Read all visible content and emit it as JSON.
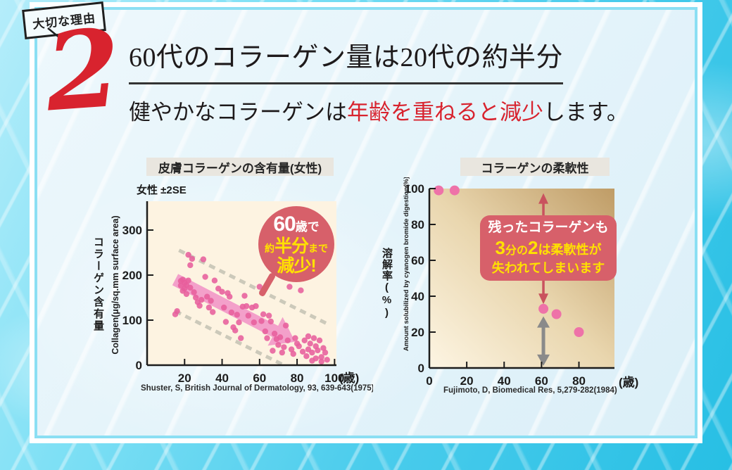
{
  "colors": {
    "accent_red": "#d8232e",
    "callout_bg": "#d7606a",
    "highlight_yellow": "#ffe100",
    "dot_pink": "#e75f9c",
    "arrow_pink": "#f29bc8",
    "plot_cream": "#fdf3e1",
    "plot_tan": "#bf9c66",
    "band_gray": "#e9e6df",
    "dash_gray": "#ccc9ba",
    "frame_cyan": "#8bdff3"
  },
  "badge": {
    "label": "大切な理由"
  },
  "reason_number": "2",
  "headline": "60代のコラーゲン量は20代の約半分",
  "subheadline": {
    "pre": "健やかなコラーゲンは",
    "em": "年齢を重ねると減少",
    "post": "します。"
  },
  "chart_data": [
    {
      "type": "scatter",
      "title": "皮膚コラーゲンの含有量(女性)",
      "legend": "女性 ±2SE",
      "ylabel_jp": "コラーゲン含有量",
      "ylabel_en": "Collagen(μg/sq.mm surface area)",
      "x_unit": "(歳)",
      "citation": "Shuster, S, British Journal of Dermatology, 93, 639-643(1975)",
      "xlim": [
        0,
        101
      ],
      "ylim": [
        0,
        364
      ],
      "xticks": [
        20,
        40,
        60,
        80,
        100
      ],
      "yticks": [
        0,
        100,
        200,
        300
      ],
      "points": [
        [
          15,
          113
        ],
        [
          16,
          120
        ],
        [
          18,
          187
        ],
        [
          18,
          177
        ],
        [
          19,
          165
        ],
        [
          19,
          190
        ],
        [
          20,
          183
        ],
        [
          20,
          170
        ],
        [
          21,
          158
        ],
        [
          21,
          178
        ],
        [
          22,
          245
        ],
        [
          22,
          188
        ],
        [
          23,
          222
        ],
        [
          23,
          172
        ],
        [
          24,
          236
        ],
        [
          25,
          162
        ],
        [
          26,
          150
        ],
        [
          27,
          140
        ],
        [
          28,
          132
        ],
        [
          29,
          145
        ],
        [
          30,
          235
        ],
        [
          31,
          196
        ],
        [
          32,
          152
        ],
        [
          33,
          128
        ],
        [
          34,
          143
        ],
        [
          35,
          118
        ],
        [
          36,
          188
        ],
        [
          38,
          170
        ],
        [
          40,
          163
        ],
        [
          41,
          128
        ],
        [
          42,
          96
        ],
        [
          43,
          160
        ],
        [
          44,
          152
        ],
        [
          45,
          117
        ],
        [
          46,
          84
        ],
        [
          47,
          77
        ],
        [
          48,
          112
        ],
        [
          49,
          95
        ],
        [
          50,
          60
        ],
        [
          51,
          130
        ],
        [
          52,
          154
        ],
        [
          53,
          131
        ],
        [
          54,
          110
        ],
        [
          56,
          128
        ],
        [
          57,
          95
        ],
        [
          58,
          131
        ],
        [
          60,
          174
        ],
        [
          61,
          98
        ],
        [
          62,
          113
        ],
        [
          63,
          75
        ],
        [
          64,
          60
        ],
        [
          65,
          110
        ],
        [
          66,
          97
        ],
        [
          67,
          32
        ],
        [
          68,
          70
        ],
        [
          69,
          58
        ],
        [
          70,
          45
        ],
        [
          71,
          62
        ],
        [
          72,
          28
        ],
        [
          73,
          40
        ],
        [
          74,
          88
        ],
        [
          75,
          55
        ],
        [
          76,
          174
        ],
        [
          77,
          35
        ],
        [
          78,
          25
        ],
        [
          79,
          60
        ],
        [
          80,
          48
        ],
        [
          81,
          42
        ],
        [
          82,
          166
        ],
        [
          83,
          30
        ],
        [
          84,
          55
        ],
        [
          85,
          20
        ],
        [
          86,
          64
        ],
        [
          86,
          35
        ],
        [
          87,
          48
        ],
        [
          88,
          28
        ],
        [
          89,
          60
        ],
        [
          90,
          15
        ],
        [
          90,
          42
        ],
        [
          91,
          33
        ],
        [
          92,
          55
        ],
        [
          93,
          18
        ],
        [
          94,
          38
        ],
        [
          95,
          28
        ],
        [
          96,
          12
        ],
        [
          93,
          8
        ],
        [
          88,
          10
        ]
      ],
      "upper_band": [
        [
          17,
          255
        ],
        [
          97,
          90
        ]
      ],
      "lower_band": [
        [
          15,
          120
        ],
        [
          72,
          2
        ]
      ],
      "trend_arrow": {
        "from": [
          15,
          190
        ],
        "to": [
          79,
          52
        ]
      },
      "callout": {
        "num": "60",
        "num_suffix": "歳で",
        "approx": "約",
        "big": "半分",
        "to": "まで",
        "line3": "減少!"
      }
    },
    {
      "type": "scatter",
      "title": "コラーゲンの柔軟性",
      "ylabel_jp": "溶解率(%)",
      "ylabel_en": "Amount solubilized by cyanogen bromide digestion(%)",
      "x_unit": "(歳)",
      "citation": "Fujimoto, D, Biomedical Res, 5,279-282(1984)",
      "xlim": [
        0,
        99
      ],
      "ylim": [
        0,
        100
      ],
      "xticks": [
        0,
        20,
        40,
        60,
        80
      ],
      "yticks": [
        0,
        20,
        40,
        60,
        80,
        100
      ],
      "points": [
        [
          5,
          99
        ],
        [
          13.5,
          99
        ],
        [
          61,
          33
        ],
        [
          68,
          30
        ],
        [
          80,
          20
        ]
      ],
      "red_arrow": {
        "x": 61,
        "y_top": 97,
        "y_bottom": 36
      },
      "gray_arrow": {
        "x": 61,
        "y_top": 28,
        "y_bottom": 2
      },
      "callout": {
        "line1": "残ったコラーゲンも",
        "big1": "3",
        "mid": "分の",
        "big2": "2",
        "rest": "は柔軟性が",
        "line3": "失われてしまいます"
      }
    }
  ]
}
